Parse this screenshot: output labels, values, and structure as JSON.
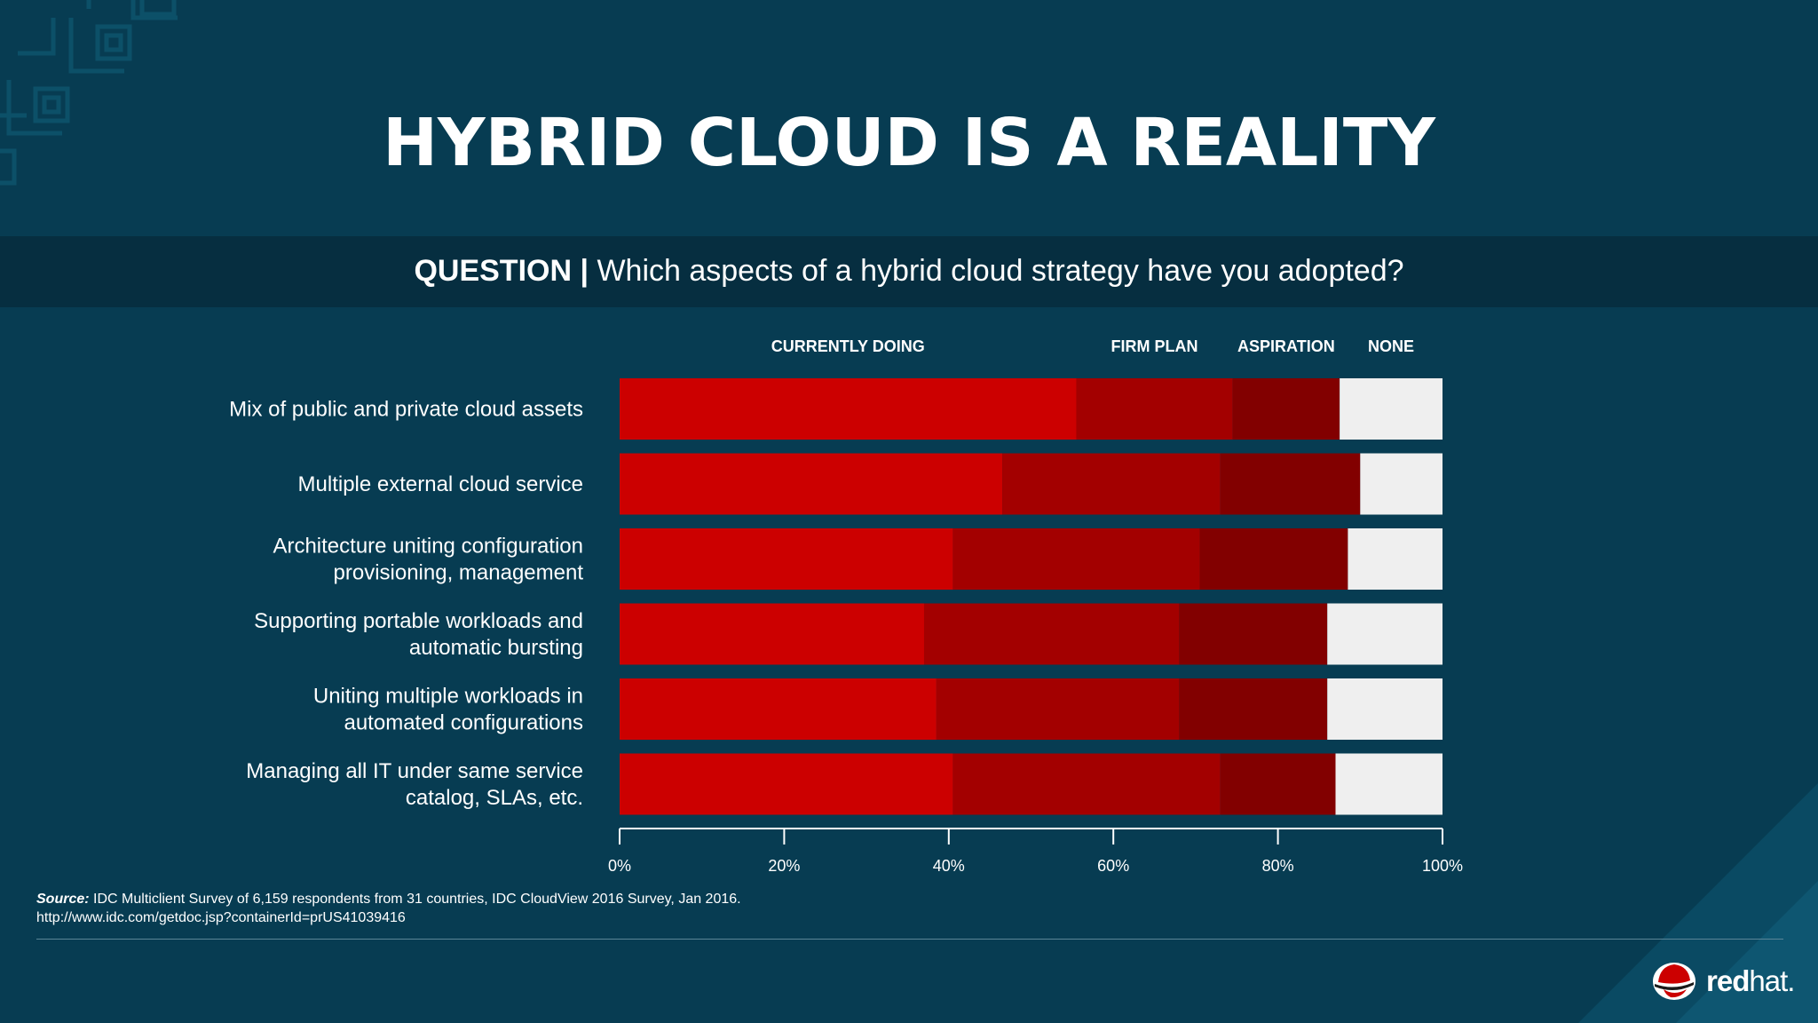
{
  "title": "HYBRID CLOUD IS A REALITY",
  "question": {
    "label": "QUESTION |",
    "text": "Which aspects of a hybrid cloud strategy have you adopted?"
  },
  "colors": {
    "background": "#073c52",
    "band": "#062e40",
    "currently_doing": "#cc0000",
    "firm_plan": "#a30000",
    "aspiration": "#820000",
    "none": "#efefef"
  },
  "chart_data": {
    "type": "bar",
    "orientation": "horizontal",
    "stacked": true,
    "legend_position": "top",
    "xlim": [
      0,
      100
    ],
    "x_ticks": [
      "0%",
      "20%",
      "40%",
      "60%",
      "80%",
      "100%"
    ],
    "categories": [
      [
        "Mix of public and private cloud assets"
      ],
      [
        "Multiple external cloud service"
      ],
      [
        "Architecture uniting configuration",
        "provisioning, management"
      ],
      [
        "Supporting portable workloads and",
        "automatic bursting"
      ],
      [
        "Uniting multiple workloads in",
        "automated configurations"
      ],
      [
        "Managing all IT under same service",
        "catalog, SLAs, etc."
      ]
    ],
    "series": [
      {
        "name": "CURRENTLY DOING",
        "values": [
          55.5,
          46.5,
          40.5,
          37,
          38.5,
          40.5
        ]
      },
      {
        "name": "FIRM PLAN",
        "values": [
          19,
          26.5,
          30,
          31,
          29.5,
          32.5
        ]
      },
      {
        "name": "ASPIRATION",
        "values": [
          13,
          17,
          18,
          18,
          18,
          14
        ]
      },
      {
        "name": "NONE",
        "values": [
          12.5,
          10,
          11.5,
          14,
          14,
          13
        ]
      }
    ]
  },
  "source": {
    "label": "Source:",
    "text": "IDC Multiclient Survey of 6,159 respondents from 31 countries, IDC CloudView 2016 Survey, Jan 2016.",
    "url": "http://www.idc.com/getdoc.jsp?containerId=prUS41039416"
  },
  "logo": {
    "part1": "red",
    "part2": "hat."
  }
}
